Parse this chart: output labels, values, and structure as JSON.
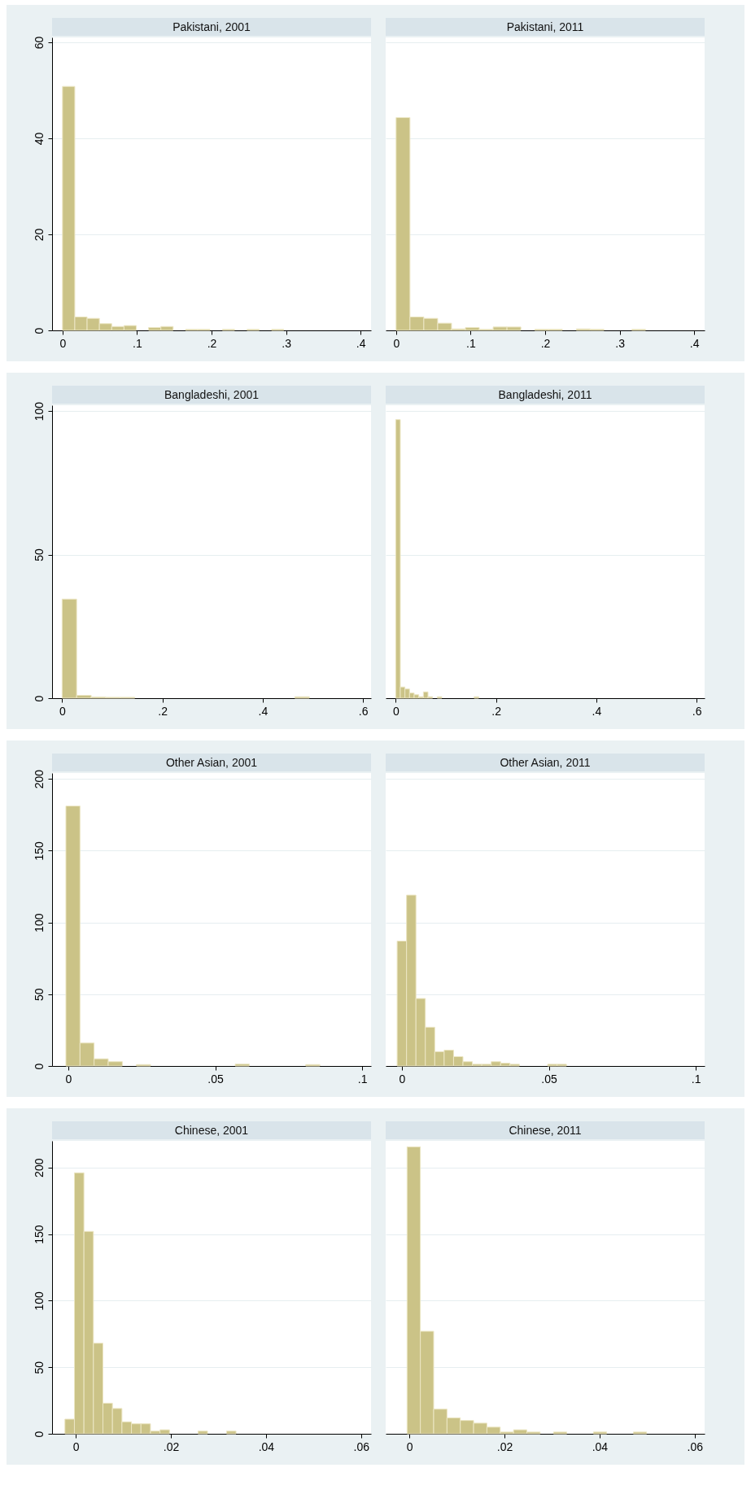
{
  "chart_data": [
    {
      "type": "histogram",
      "title": "Pakistani, 2001",
      "bins": [
        0,
        0.0165,
        0.033,
        0.0495,
        0.066,
        0.0825,
        0.099,
        0.1155,
        0.132,
        0.1485,
        0.165,
        0.1815,
        0.198,
        0.2145,
        0.231,
        0.2475,
        0.264,
        0.2805,
        0.297
      ],
      "values": [
        50.8,
        2.8,
        2.5,
        1.4,
        0.8,
        1,
        0,
        0.6,
        0.8,
        0,
        0.2,
        0.2,
        0,
        0.2,
        0,
        0.2,
        0,
        0.2
      ],
      "color": "#cbc387",
      "xlim": [
        -0.014,
        0.414
      ],
      "xticks": [
        {
          "value": 0,
          "label": "0"
        },
        {
          "value": 0.1,
          "label": ".1"
        },
        {
          "value": 0.2,
          "label": ".2"
        },
        {
          "value": 0.3,
          "label": ".3"
        },
        {
          "value": 0.4,
          "label": ".4"
        }
      ],
      "ylim": [
        0,
        61
      ],
      "yticks": [
        0,
        20,
        40,
        60
      ],
      "grid": "y"
    },
    {
      "type": "histogram",
      "title": "Pakistani, 2011",
      "bins": [
        0,
        0.0186,
        0.0372,
        0.0558,
        0.0744,
        0.093,
        0.1116,
        0.1302,
        0.1488,
        0.1674,
        0.186,
        0.2046,
        0.2232,
        0.2418,
        0.2604,
        0.279,
        0.2976,
        0.3162,
        0.3348
      ],
      "values": [
        44.3,
        2.8,
        2.5,
        1.5,
        0.3,
        0.6,
        0.2,
        0.7,
        0.7,
        0,
        0.2,
        0.2,
        0,
        0.3,
        0.2,
        0,
        0,
        0.2
      ],
      "color": "#cbc387",
      "xlim": [
        -0.014,
        0.414
      ],
      "xticks": [
        {
          "value": 0,
          "label": "0"
        },
        {
          "value": 0.1,
          "label": ".1"
        },
        {
          "value": 0.2,
          "label": ".2"
        },
        {
          "value": 0.3,
          "label": ".3"
        },
        {
          "value": 0.4,
          "label": ".4"
        }
      ],
      "ylim": [
        0,
        61
      ],
      "yticks": [
        0,
        20,
        40,
        60
      ],
      "grid": "y",
      "tick_labels": "x"
    },
    {
      "type": "histogram",
      "title": "Bangladeshi, 2001",
      "bins": [
        0,
        0.029,
        0.058,
        0.087,
        0.116,
        0.145,
        0.174,
        0.203,
        0.232,
        0.261,
        0.29,
        0.319,
        0.348,
        0.377,
        0.406,
        0.435,
        0.464,
        0.493
      ],
      "values": [
        34.5,
        1,
        0.4,
        0.3,
        0.3,
        0,
        0,
        0,
        0,
        0,
        0,
        0,
        0,
        0,
        0,
        0,
        0.5
      ],
      "color": "#cbc387",
      "xlim": [
        -0.02,
        0.616
      ],
      "xticks": [
        {
          "value": 0,
          "label": "0"
        },
        {
          "value": 0.2,
          "label": ".2"
        },
        {
          "value": 0.4,
          "label": ".4"
        },
        {
          "value": 0.6,
          "label": ".6"
        }
      ],
      "ylim": [
        0,
        102
      ],
      "yticks": [
        0,
        50,
        100
      ],
      "grid": "y"
    },
    {
      "type": "histogram",
      "title": "Bangladeshi, 2011",
      "bins": [
        0,
        0.0092,
        0.0184,
        0.0276,
        0.0368,
        0.046,
        0.0552,
        0.0644,
        0.0736,
        0.0828,
        0.092,
        0.1012,
        0.1104,
        0.1196,
        0.1288,
        0.138,
        0.1472,
        0.1564,
        0.1656
      ],
      "values": [
        97,
        3.9,
        3.2,
        1.8,
        1.2,
        0.5,
        2.2,
        0.5,
        0,
        0.5,
        0,
        0,
        0,
        0,
        0,
        0,
        0,
        0.5
      ],
      "color": "#cbc387",
      "xlim": [
        -0.02,
        0.616
      ],
      "xticks": [
        {
          "value": 0,
          "label": "0"
        },
        {
          "value": 0.2,
          "label": ".2"
        },
        {
          "value": 0.4,
          "label": ".4"
        },
        {
          "value": 0.6,
          "label": ".6"
        }
      ],
      "ylim": [
        0,
        102
      ],
      "yticks": [
        0,
        50,
        100
      ],
      "grid": "y",
      "tick_labels": "x"
    },
    {
      "type": "histogram",
      "title": "Other Asian, 2001",
      "bins": [
        -0.0008,
        0.004,
        0.0088,
        0.0136,
        0.0184,
        0.0232,
        0.028,
        0.0328,
        0.0376,
        0.0424,
        0.0472,
        0.052,
        0.0568,
        0.0616,
        0.0664,
        0.0712,
        0.076,
        0.0808,
        0.0856
      ],
      "values": [
        181,
        16,
        5,
        3,
        0,
        1,
        0,
        0,
        0,
        0,
        0,
        0,
        1.3,
        0,
        0,
        0,
        0,
        1
      ],
      "color": "#cbc387",
      "xlim": [
        -0.0055,
        0.103
      ],
      "xticks": [
        {
          "value": 0,
          "label": "0"
        },
        {
          "value": 0.05,
          "label": ".05"
        },
        {
          "value": 0.1,
          "label": ".1"
        }
      ],
      "ylim": [
        0,
        204
      ],
      "yticks": [
        0,
        50,
        100,
        150,
        200
      ],
      "grid": "y"
    },
    {
      "type": "histogram",
      "title": "Other Asian, 2011",
      "bins": [
        -0.0016,
        0.0016,
        0.0048,
        0.008,
        0.0112,
        0.0144,
        0.0176,
        0.0208,
        0.024,
        0.0272,
        0.0304,
        0.0336,
        0.0368,
        0.04,
        0.0432,
        0.0464,
        0.0496,
        0.0528,
        0.056
      ],
      "values": [
        87,
        119,
        47,
        27,
        10,
        11,
        6.5,
        3,
        1.2,
        1.2,
        3,
        2,
        1.2,
        0,
        0,
        0,
        1.2,
        1.2
      ],
      "color": "#cbc387",
      "xlim": [
        -0.0055,
        0.103
      ],
      "xticks": [
        {
          "value": 0,
          "label": "0"
        },
        {
          "value": 0.05,
          "label": ".05"
        },
        {
          "value": 0.1,
          "label": ".1"
        }
      ],
      "ylim": [
        0,
        204
      ],
      "yticks": [
        0,
        50,
        100,
        150,
        200
      ],
      "grid": "y",
      "tick_labels": "x"
    },
    {
      "type": "histogram",
      "title": "Chinese, 2001",
      "bins": [
        -0.0023,
        -0.0003,
        0.0017,
        0.0037,
        0.0057,
        0.0077,
        0.0097,
        0.0117,
        0.0137,
        0.0157,
        0.0177,
        0.0197,
        0.0217,
        0.0237,
        0.0257,
        0.0277,
        0.0297,
        0.0317,
        0.0337
      ],
      "values": [
        11,
        196,
        152,
        68,
        23,
        19,
        9,
        7.5,
        7.5,
        2,
        3,
        0,
        0,
        0,
        2,
        0,
        0,
        2
      ],
      "color": "#cbc387",
      "xlim": [
        -0.005,
        0.0621
      ],
      "xticks": [
        {
          "value": 0,
          "label": "0"
        },
        {
          "value": 0.02,
          "label": ".02"
        },
        {
          "value": 0.04,
          "label": ".04"
        },
        {
          "value": 0.06,
          "label": ".06"
        }
      ],
      "ylim": [
        0,
        220
      ],
      "yticks": [
        0,
        50,
        100,
        150,
        200
      ],
      "grid": "y"
    },
    {
      "type": "histogram",
      "title": "Chinese, 2011",
      "bins": [
        -0.0005,
        0.0023,
        0.0051,
        0.0079,
        0.0107,
        0.0135,
        0.0163,
        0.0191,
        0.0219,
        0.0247,
        0.0275,
        0.0303,
        0.0331,
        0.0359,
        0.0387,
        0.0415,
        0.0443,
        0.0471,
        0.0499
      ],
      "values": [
        215.5,
        77,
        18.5,
        12,
        10,
        8,
        5,
        1.3,
        3,
        1.3,
        0,
        1.3,
        0,
        0,
        1.3,
        0,
        0,
        1.3
      ],
      "color": "#cbc387",
      "xlim": [
        -0.005,
        0.0621
      ],
      "xticks": [
        {
          "value": 0,
          "label": "0"
        },
        {
          "value": 0.02,
          "label": ".02"
        },
        {
          "value": 0.04,
          "label": ".04"
        },
        {
          "value": 0.06,
          "label": ".06"
        }
      ],
      "ylim": [
        0,
        220
      ],
      "yticks": [
        0,
        50,
        100,
        150,
        200
      ],
      "grid": "y",
      "tick_labels": "x"
    }
  ]
}
